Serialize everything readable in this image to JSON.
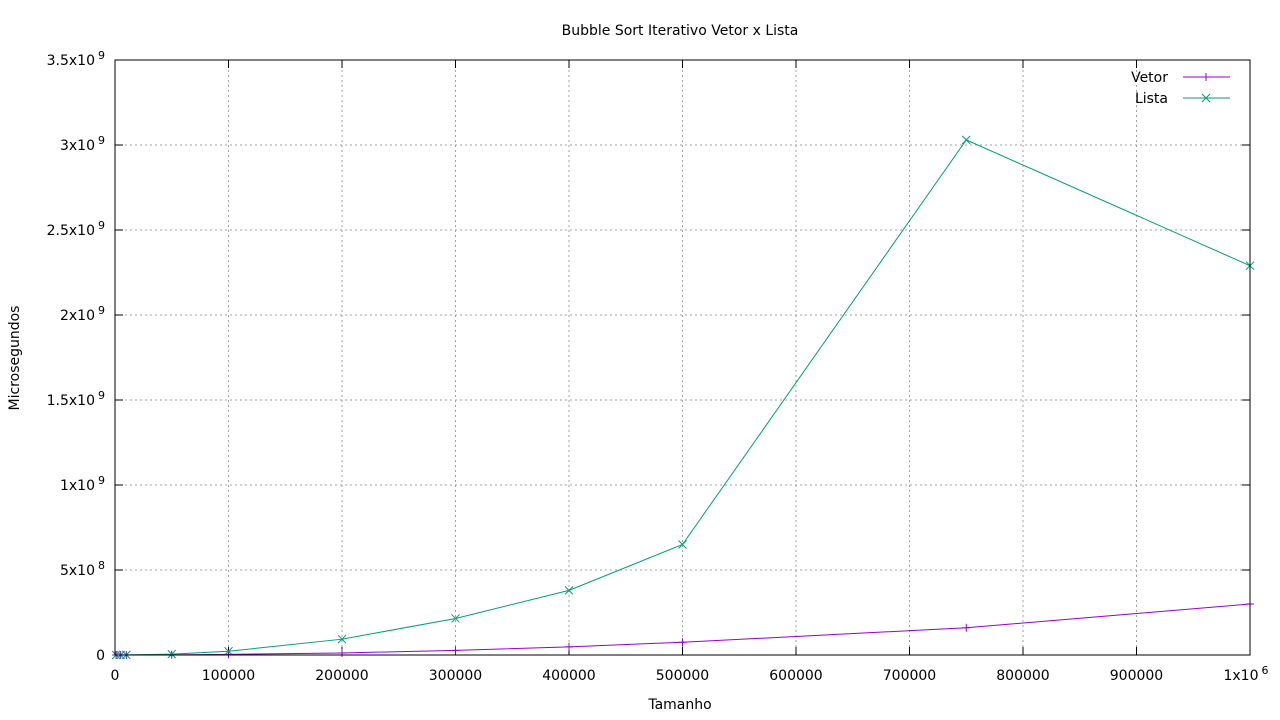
{
  "chart_data": {
    "type": "line",
    "title": "Bubble Sort Iterativo Vetor x Lista",
    "xlabel": "Tamanho",
    "ylabel": "Microsegundos",
    "xlim": [
      0,
      1000000
    ],
    "ylim": [
      0,
      3500000000
    ],
    "grid": true,
    "legend_position": "top-right",
    "x_ticks": [
      {
        "value": 0,
        "label": "0"
      },
      {
        "value": 100000,
        "label": "100000"
      },
      {
        "value": 200000,
        "label": "200000"
      },
      {
        "value": 300000,
        "label": "300000"
      },
      {
        "value": 400000,
        "label": "400000"
      },
      {
        "value": 500000,
        "label": "500000"
      },
      {
        "value": 600000,
        "label": "600000"
      },
      {
        "value": 700000,
        "label": "700000"
      },
      {
        "value": 800000,
        "label": "800000"
      },
      {
        "value": 900000,
        "label": "900000"
      },
      {
        "value": 1000000,
        "label": "1x10",
        "exp": "6"
      }
    ],
    "y_ticks": [
      {
        "value": 0,
        "label": "0"
      },
      {
        "value": 500000000,
        "label": "5x10",
        "exp": "8"
      },
      {
        "value": 1000000000,
        "label": "1x10",
        "exp": "9"
      },
      {
        "value": 1500000000,
        "label": "1.5x10",
        "exp": "9"
      },
      {
        "value": 2000000000,
        "label": "2x10",
        "exp": "9"
      },
      {
        "value": 2500000000,
        "label": "2.5x10",
        "exp": "9"
      },
      {
        "value": 3000000000,
        "label": "3x10",
        "exp": "9"
      },
      {
        "value": 3500000000,
        "label": "3.5x10",
        "exp": "9"
      }
    ],
    "series": [
      {
        "name": "Vetor",
        "color": "#9400d3",
        "marker": "plus",
        "x": [
          1000,
          5000,
          10000,
          50000,
          100000,
          200000,
          300000,
          400000,
          500000,
          750000,
          1000000
        ],
        "y": [
          0,
          0,
          100000,
          1000000,
          4000000,
          12000000,
          27000000,
          48000000,
          75000000,
          160000000,
          300000000
        ]
      },
      {
        "name": "Lista",
        "color": "#009e73",
        "marker": "cross",
        "x": [
          1000,
          5000,
          10000,
          50000,
          100000,
          200000,
          300000,
          400000,
          500000,
          750000,
          1000000
        ],
        "y": [
          0,
          0,
          500000,
          5000000,
          22000000,
          93000000,
          215000000,
          380000000,
          650000000,
          3030000000,
          2290000000
        ]
      }
    ]
  }
}
